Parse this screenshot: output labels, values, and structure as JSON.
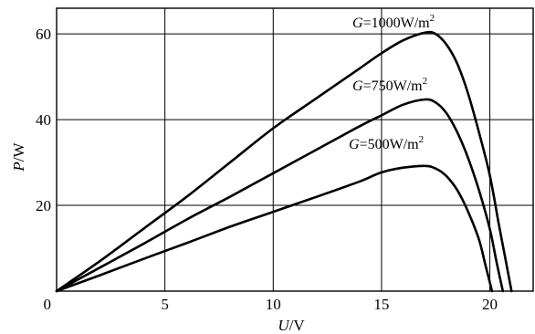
{
  "chart_data": {
    "type": "line",
    "xlabel": {
      "var": "U",
      "unit": "/V"
    },
    "ylabel": {
      "var": "P",
      "unit": "/W"
    },
    "xlim": [
      0,
      22
    ],
    "ylim": [
      0,
      66
    ],
    "x_ticks": [
      0,
      5,
      10,
      15,
      20
    ],
    "y_ticks": [
      20,
      40,
      60
    ],
    "x_tick_labels": [
      "5",
      "10",
      "15",
      "20"
    ],
    "y_tick_labels": [
      "20",
      "40",
      "60"
    ],
    "origin_label": "0",
    "grid": true,
    "series": [
      {
        "label": {
          "var": "G",
          "text": "=1000W/m",
          "sup": "2"
        },
        "points": [
          [
            0,
            0
          ],
          [
            2,
            7
          ],
          [
            4,
            14.5
          ],
          [
            6,
            22
          ],
          [
            8,
            30
          ],
          [
            10,
            38
          ],
          [
            12,
            45
          ],
          [
            14,
            52
          ],
          [
            15,
            55.5
          ],
          [
            16,
            58.5
          ],
          [
            17,
            60.3
          ],
          [
            17.5,
            60
          ],
          [
            18,
            57.5
          ],
          [
            18.5,
            53
          ],
          [
            19,
            46
          ],
          [
            19.5,
            37
          ],
          [
            20,
            27
          ],
          [
            20.4,
            16
          ],
          [
            20.7,
            8
          ],
          [
            21,
            0
          ]
        ]
      },
      {
        "label": {
          "var": "G",
          "text": "=750W/m",
          "sup": "2"
        },
        "points": [
          [
            0,
            0
          ],
          [
            2,
            5.5
          ],
          [
            4,
            11
          ],
          [
            6,
            16.7
          ],
          [
            8,
            22
          ],
          [
            10,
            27.5
          ],
          [
            12,
            33
          ],
          [
            14,
            38.5
          ],
          [
            15,
            41
          ],
          [
            16,
            43.5
          ],
          [
            17,
            44.7
          ],
          [
            17.5,
            44
          ],
          [
            18,
            41.5
          ],
          [
            18.5,
            37
          ],
          [
            19,
            31
          ],
          [
            19.5,
            23.5
          ],
          [
            20,
            14.5
          ],
          [
            20.3,
            7
          ],
          [
            20.6,
            0
          ]
        ]
      },
      {
        "label": {
          "var": "G",
          "text": "=500W/m",
          "sup": "2"
        },
        "points": [
          [
            0,
            0
          ],
          [
            2,
            3.7
          ],
          [
            4,
            7.5
          ],
          [
            6,
            11.2
          ],
          [
            8,
            15
          ],
          [
            10,
            18.5
          ],
          [
            12,
            22
          ],
          [
            14,
            25.6
          ],
          [
            15,
            27.7
          ],
          [
            16,
            28.8
          ],
          [
            17,
            29.2
          ],
          [
            17.5,
            28.6
          ],
          [
            18,
            26.8
          ],
          [
            18.5,
            23.5
          ],
          [
            19,
            18.5
          ],
          [
            19.5,
            12
          ],
          [
            19.8,
            6
          ],
          [
            20.1,
            0
          ]
        ]
      }
    ]
  }
}
